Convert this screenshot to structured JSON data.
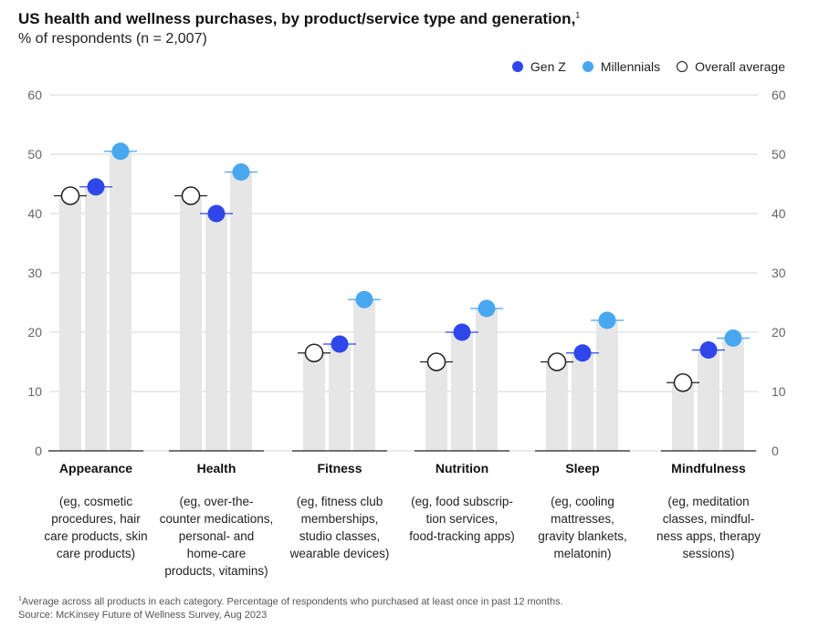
{
  "header": {
    "title": "US health and wellness purchases, by product/service type and generation,",
    "title_note_marker": "1",
    "subtitle": "% of respondents (n = 2,007)"
  },
  "legend": {
    "items": [
      {
        "label": "Gen Z",
        "color": "#2e46ea"
      },
      {
        "label": "Millennials",
        "color": "#48a7ef"
      },
      {
        "label": "Overall average",
        "color": "#ffffff"
      }
    ]
  },
  "chart_data": {
    "type": "bar",
    "categories": [
      "Appearance",
      "Health",
      "Fitness",
      "Nutrition",
      "Sleep",
      "Mindfulness"
    ],
    "category_descriptions": [
      [
        "(eg, cosmetic",
        "procedures, hair",
        "care products, skin",
        "care products)"
      ],
      [
        "(eg, over-the-",
        "counter medications,",
        "personal- and",
        "home-care",
        "products, vitamins)"
      ],
      [
        "(eg, fitness club",
        "memberships,",
        "studio classes,",
        "wearable devices)"
      ],
      [
        "(eg, food subscrip-",
        "tion services,",
        "food-tracking apps)"
      ],
      [
        "(eg, cooling",
        "mattresses,",
        "gravity blankets,",
        "melatonin)"
      ],
      [
        "(eg, meditation",
        "classes, mindful-",
        "ness apps, therapy",
        "sessions)"
      ]
    ],
    "series": [
      {
        "name": "Overall average",
        "values": [
          43,
          43,
          16.5,
          15,
          15,
          11.5
        ],
        "color": "#ffffff"
      },
      {
        "name": "Gen Z",
        "values": [
          44.5,
          40,
          18,
          20,
          16.5,
          17
        ],
        "color": "#2e46ea"
      },
      {
        "name": "Millennials",
        "values": [
          50.5,
          47,
          25.5,
          24,
          22,
          19
        ],
        "color": "#48a7ef"
      }
    ],
    "ylim": [
      0,
      60
    ],
    "yticks": [
      0,
      10,
      20,
      30,
      40,
      50,
      60
    ],
    "grid": true,
    "legend_position": "top-right",
    "bar_color": "#e6e6e6"
  },
  "footnote": {
    "marker": "1",
    "text": "Average across all products in each category. Percentage of respondents who purchased at least once in past 12 months.",
    "source": "Source: McKinsey Future of Wellness Survey, Aug 2023"
  }
}
